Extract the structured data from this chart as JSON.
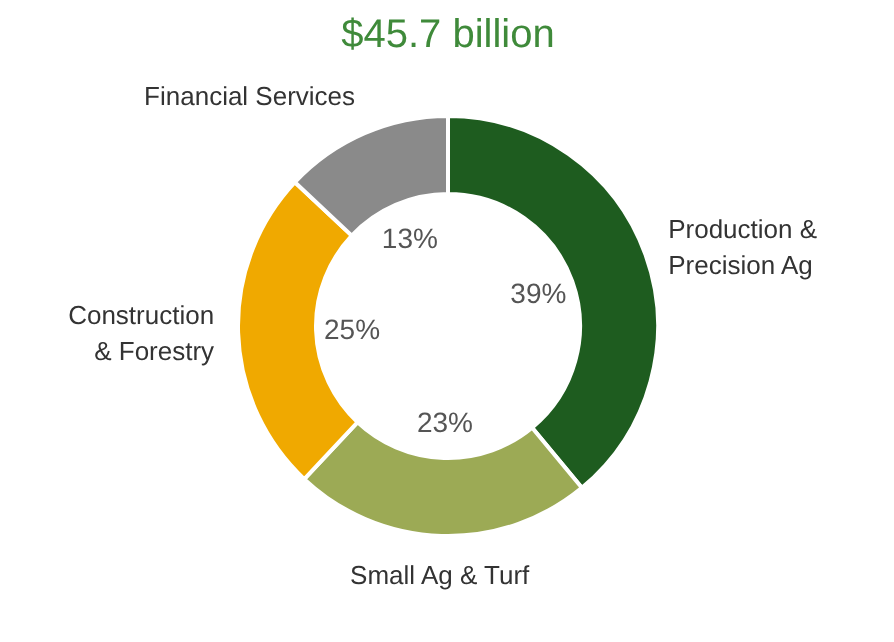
{
  "chart_data": {
    "type": "donut",
    "title": "$45.7 billion",
    "categories": [
      "Production &\nPrecision Ag",
      "Small Ag & Turf",
      "Construction\n& Forestry",
      "Financial Services"
    ],
    "values": [
      39,
      23,
      25,
      13
    ],
    "value_labels": [
      "39%",
      "23%",
      "25%",
      "13%"
    ],
    "colors": [
      "#1e5c1f",
      "#9caa55",
      "#f0a900",
      "#8a8a8a"
    ]
  }
}
